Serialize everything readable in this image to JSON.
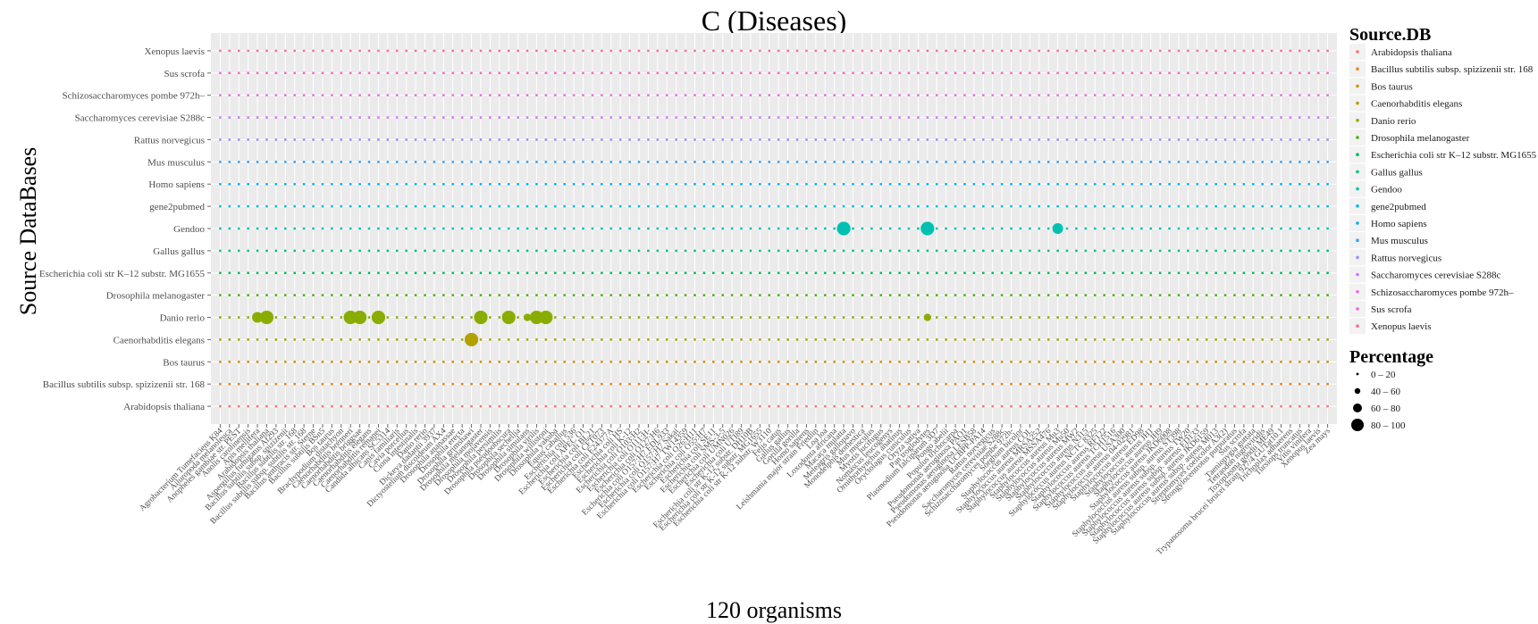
{
  "chart_data": {
    "type": "scatter",
    "title": "C (Diseases)",
    "xlabel": "120 organisms",
    "ylabel": "Source DataBases",
    "grid": true,
    "legend_position": "right",
    "background": "#ebebeb",
    "gridline_color": "#ffffff",
    "y_categories": [
      "Arabidopsis thaliana",
      "Bacillus subtilis subsp. spizizenii str. 168",
      "Bos taurus",
      "Caenorhabditis elegans",
      "Danio rerio",
      "Drosophila melanogaster",
      "Escherichia coli str K–12 substr. MG1655",
      "Gallus gallus",
      "Gendoo",
      "gene2pubmed",
      "Homo sapiens",
      "Mus musculus",
      "Rattus norvegicus",
      "Saccharomyces cerevisiae S288c",
      "Schizosaccharomyces pombe 972h–",
      "Sus scrofa",
      "Xenopus laevis"
    ],
    "series_colors": [
      "#F8766D",
      "#E7851E",
      "#D09400",
      "#B2A100",
      "#89AC00",
      "#45B500",
      "#00BC51",
      "#00C087",
      "#00C0B2",
      "#00BCD6",
      "#00B3F2",
      "#29A3FF",
      "#9C8DFF",
      "#D277FF",
      "#F166E8",
      "#FF61C7",
      "#FF689E"
    ],
    "x_categories": [
      "Agrobacterium Tumefaciens K84",
      "Ailuropoda melanoleuca",
      "Anopheles gambiae str. PEST",
      "Anolis carolinensis",
      "Apis mellifera",
      "Arabidopsis thaliana",
      "Aspergillus fumigatus Af293",
      "Bacillus subtilis subsp. spizizenii",
      "Bacillus subtilis str. 168",
      "Bacillus subtilis subsp. subtilis str. 168",
      "Bacillus anthracis str. Sterne",
      "Bacillus subtilis BSn5",
      "Bos taurus",
      "Brachypodium distachyon",
      "Caenorhabditis brenneri",
      "Caenorhabditis briggsae",
      "Caenorhabditis elegans",
      "Caenorhabditis remanei",
      "Candida albicans SC5314",
      "Canis familiaris",
      "Cavia porcellus",
      "Ciona intestinalis",
      "Danio rerio",
      "Dickeya dadantii 3937",
      "Dictyostelium discoideum AX4",
      "Drosophila ananassae",
      "Drosophila erecta",
      "Drosophila grimshawi",
      "Drosophila melanogaster",
      "Drosophila mojavensis",
      "Drosophila persimilis",
      "Drosophila pseudoobscura",
      "Drosophila sechellia",
      "Drosophila simulans",
      "Drosophila virilis",
      "Drosophila willistoni",
      "Drosophila yakuba",
      "Equus caballus",
      "Escherichia coli 536",
      "Escherichia coli APEC O1",
      "Escherichia coli BL21",
      "Escherichia coli CFT073",
      "Escherichia coli E24377A",
      "Escherichia coli HS",
      "Escherichia coli K-12",
      "Escherichia coli O103:H2",
      "Escherichia coli O111:H-",
      "Escherichia coli O127:H6",
      "Escherichia coli O157:H7 EDL933",
      "Escherichia coli O157:H7 Sakai",
      "Escherichia coli O157:H7 TW14359",
      "Escherichia coli O26:H11",
      "Escherichia coli O55:H7",
      "Escherichia coli SE11",
      "Escherichia coli SMS-3-5",
      "Escherichia coli UMN026",
      "Escherichia coli UTI89",
      "Escherichia coli str K-12 substr. DH10B",
      "Escherichia coli str K-12 substr. MG1655",
      "Escherichia coli str K-12 substr. W3110",
      "Felis catus",
      "Gallus gallus",
      "Gorilla gorilla",
      "Homo sapiens",
      "Leishmania major strain Friedlin",
      "Loa loa",
      "Loxodonta africana",
      "Macaca mulatta",
      "Meleagris gallopavo",
      "Monodelphis domestica",
      "Mus musculus",
      "Myotis lucifugus",
      "Nomascus leucogenys",
      "Ornithorhynchus anatinus",
      "Oryctolagus cuniculus",
      "Oryza sativa",
      "Pan troglodytes",
      "Plasmodium falciparum 3D7",
      "Pongo abelii",
      "Populus trichocarpa",
      "Pseudomonas aeruginosa PAO1",
      "Pseudomonas aeruginosa LESB58",
      "Pseudomonas aeruginosa UCBPP-PA14",
      "Rattus norvegicus",
      "Saccharomyces cerevisiae S288c",
      "Schizosaccharomyces pombe 972h-",
      "Sorghum bicolor",
      "Staphylococcus aureus COL",
      "Staphylococcus aureus MRSA252",
      "Staphylococcus aureus MSSA476",
      "Staphylococcus aureus Mu3",
      "Staphylococcus aureus Mu50",
      "Staphylococcus aureus MW2",
      "Staphylococcus aureus N315",
      "Staphylococcus aureus NCTC 8325",
      "Staphylococcus aureus RF122",
      "Staphylococcus aureus TCH1516",
      "Staphylococcus aureus USA300",
      "Staphylococcus aureus 04-02981",
      "Staphylococcus aureus ED98",
      "Staphylococcus aureus JH1",
      "Staphylococcus aureus JH9",
      "Staphylococcus aureus JKD6008",
      "Staphylococcus aureus subsp. aureus ST398",
      "Staphylococcus aureus subsp. aureus TW20",
      "Staphylococcus aureus subsp. aureus ED133",
      "Staphylococcus aureus subsp. aureus JKD6159",
      "Staphylococcus aureus subsp. aureus M013",
      "Streptomyces coelicolor A3(2)",
      "Strongylocentrotus purpuratus",
      "Sus scrofa",
      "Taeniopygia guttata",
      "Tetraodon nigroviridis",
      "Toxoplasma gondii ME49",
      "Trypanosoma brucei brucei strain 927/4 GUTat10.1",
      "Trichoplax adhaerens",
      "Tursiops truncatus",
      "Vitis vinifera",
      "Xenopus laevis",
      "Zea mays"
    ],
    "base_percentage": 5,
    "highlights": [
      {
        "series": "Danio rerio",
        "x_index": 4,
        "percentage": 70
      },
      {
        "series": "Danio rerio",
        "x_index": 5,
        "percentage": 85
      },
      {
        "series": "Danio rerio",
        "x_index": 14,
        "percentage": 85
      },
      {
        "series": "Danio rerio",
        "x_index": 15,
        "percentage": 85
      },
      {
        "series": "Danio rerio",
        "x_index": 17,
        "percentage": 85
      },
      {
        "series": "Danio rerio",
        "x_index": 28,
        "percentage": 85
      },
      {
        "series": "Danio rerio",
        "x_index": 31,
        "percentage": 85
      },
      {
        "series": "Danio rerio",
        "x_index": 33,
        "percentage": 45
      },
      {
        "series": "Danio rerio",
        "x_index": 34,
        "percentage": 85
      },
      {
        "series": "Danio rerio",
        "x_index": 35,
        "percentage": 85
      },
      {
        "series": "Danio rerio",
        "x_index": 76,
        "percentage": 50
      },
      {
        "series": "Caenorhabditis elegans",
        "x_index": 27,
        "percentage": 85
      },
      {
        "series": "Gendoo",
        "x_index": 67,
        "percentage": 90
      },
      {
        "series": "Gendoo",
        "x_index": 76,
        "percentage": 90
      },
      {
        "series": "Gendoo",
        "x_index": 90,
        "percentage": 65
      }
    ],
    "size_legend": {
      "title": "Percentage",
      "bins": [
        "0 – 20",
        "40 – 60",
        "60 – 80",
        "80 – 100"
      ]
    },
    "color_legend_title": "Source.DB"
  }
}
